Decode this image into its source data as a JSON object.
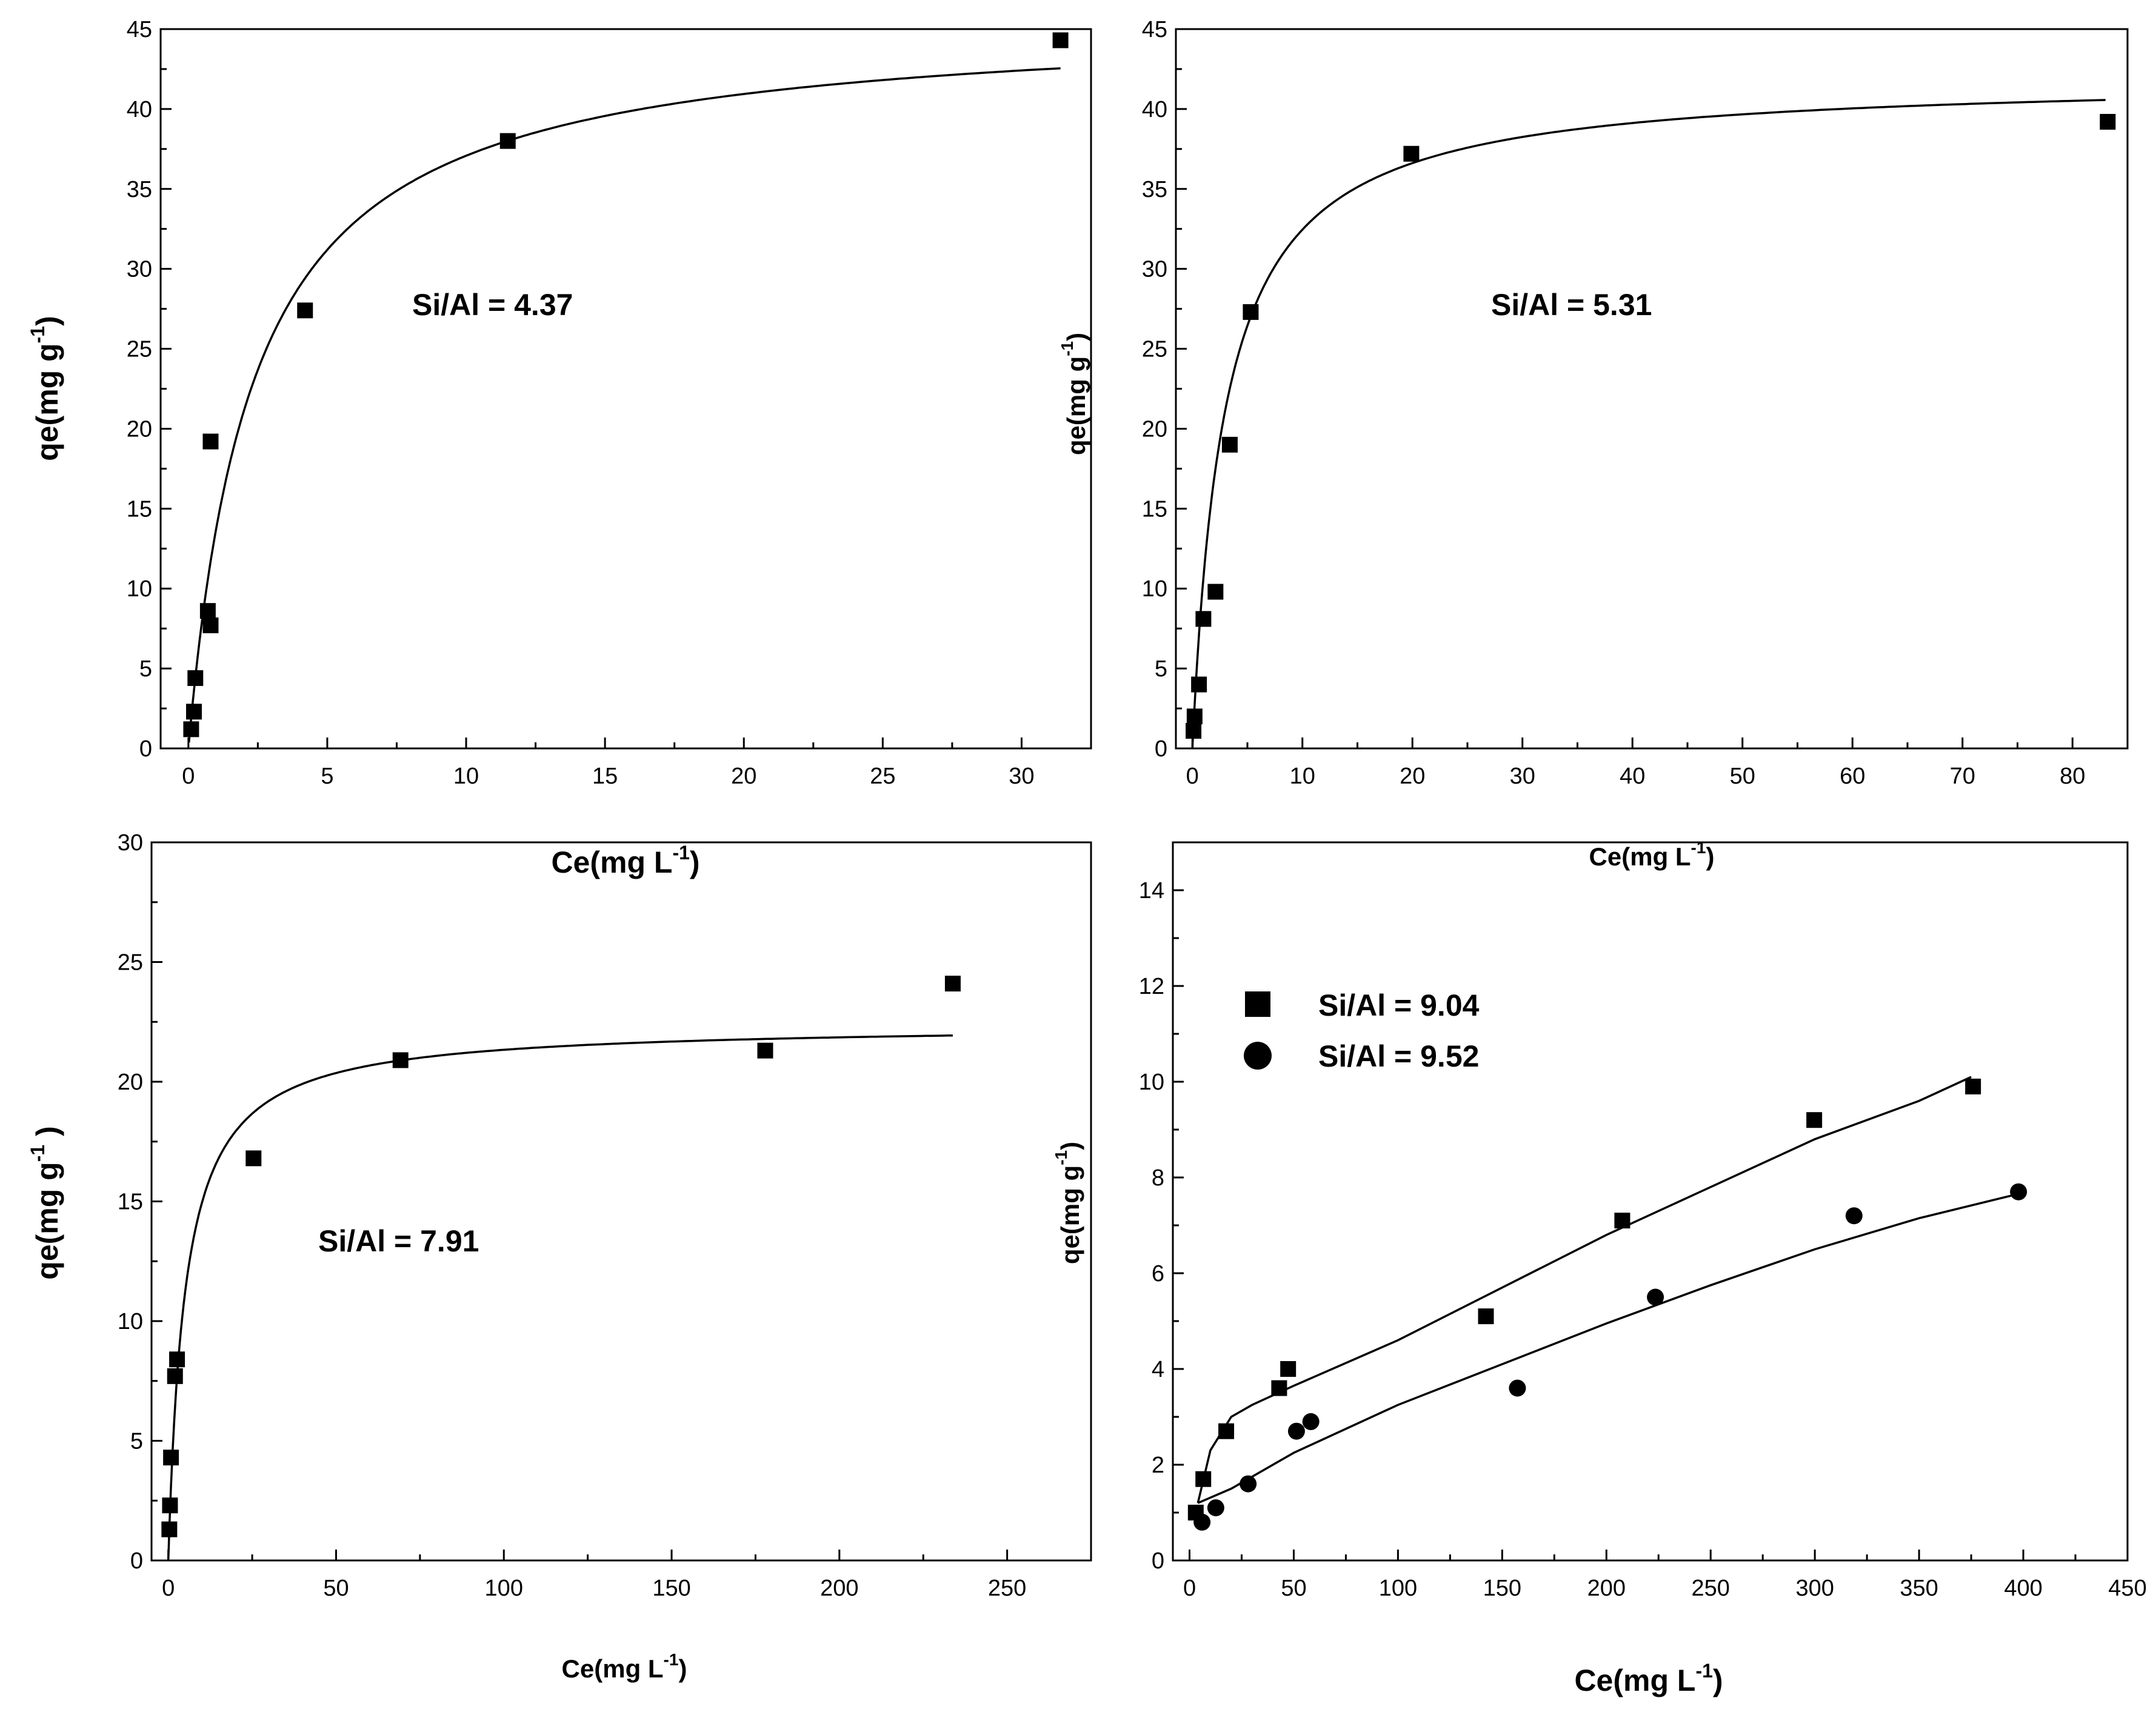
{
  "chart_data": [
    {
      "type": "scatter",
      "title": "",
      "annotation": "Si/Al = 4.37",
      "xlabel": {
        "base": "Ce(mg L",
        "sup": "-1",
        "close": ")"
      },
      "ylabel": {
        "base": "qe(mg g",
        "sup": "-1",
        "close": ")"
      },
      "xlim": [
        -1,
        32.5
      ],
      "ylim": [
        0,
        45
      ],
      "xticks": [
        0,
        5,
        10,
        15,
        20,
        25,
        30
      ],
      "yticks": [
        0,
        5,
        10,
        15,
        20,
        25,
        30,
        35,
        40,
        45
      ],
      "grid": false,
      "series": [
        {
          "name": "Si/Al = 4.37",
          "marker": "square",
          "x": [
            0.1,
            0.2,
            0.25,
            0.7,
            0.8,
            0.8,
            4.2,
            11.5,
            31.4
          ],
          "y": [
            1.2,
            2.3,
            4.4,
            8.6,
            7.7,
            19.2,
            27.4,
            38.0,
            44.3
          ],
          "fit": {
            "model": "langmuir",
            "qmax": 45.7,
            "K": 0.43,
            "xmin": 0.02,
            "xmax": 31.4
          }
        }
      ]
    },
    {
      "type": "scatter",
      "title": "",
      "annotation": "Si/Al = 5.31",
      "xlabel": {
        "base": "Ce(mg L",
        "sup": "-1",
        "close": ")"
      },
      "ylabel": {
        "base": "qe(mg g",
        "sup": "-1",
        "close": ")"
      },
      "xlim": [
        -1.5,
        85
      ],
      "ylim": [
        0,
        45
      ],
      "xticks": [
        0,
        10,
        20,
        30,
        40,
        50,
        60,
        70,
        80
      ],
      "yticks": [
        0,
        5,
        10,
        15,
        20,
        25,
        30,
        35,
        40,
        45
      ],
      "grid": false,
      "series": [
        {
          "name": "Si/Al = 5.31",
          "marker": "square",
          "x": [
            0.1,
            0.2,
            0.6,
            1.0,
            2.1,
            3.4,
            5.3,
            19.9,
            83.2
          ],
          "y": [
            1.1,
            2.0,
            4.0,
            8.1,
            9.8,
            19.0,
            27.3,
            37.2,
            39.2
          ],
          "fit": {
            "model": "langmuir",
            "qmax": 42.0,
            "K": 0.34,
            "xmin": 0.0,
            "xmax": 83.0
          }
        }
      ]
    },
    {
      "type": "scatter",
      "title": "",
      "annotation": "Si/Al = 7.91",
      "xlabel": {
        "base": "Ce(mg L",
        "sup": "-1",
        "close": ")"
      },
      "ylabel": {
        "base": "qe(mg g",
        "sup": "-1",
        "close": " )"
      },
      "xlim": [
        -5,
        275
      ],
      "ylim": [
        0,
        30
      ],
      "xticks": [
        0,
        50,
        100,
        150,
        200,
        250
      ],
      "yticks": [
        0,
        5,
        10,
        15,
        20,
        25,
        30
      ],
      "grid": false,
      "series": [
        {
          "name": "Si/Al = 7.91",
          "marker": "square",
          "x": [
            0.3,
            0.5,
            0.8,
            2.0,
            2.6,
            25.4,
            69.2,
            177.9,
            233.8
          ],
          "y": [
            1.3,
            2.3,
            4.3,
            7.7,
            8.4,
            16.8,
            20.9,
            21.3,
            24.1
          ],
          "fit": {
            "model": "langmuir",
            "qmax": 22.4,
            "K": 0.2,
            "xmin": 0.0,
            "xmax": 233.8
          }
        }
      ]
    },
    {
      "type": "scatter",
      "title": "",
      "xlabel": {
        "base": "Ce(mg L",
        "sup": "-1",
        "close": ")"
      },
      "ylabel": {
        "base": "qe(mg g",
        "sup": "-1",
        "close": ")"
      },
      "xlim": [
        -8,
        450
      ],
      "ylim": [
        0,
        15
      ],
      "xticks": [
        0,
        50,
        100,
        150,
        200,
        250,
        300,
        350,
        400,
        450
      ],
      "yticks": [
        0,
        2,
        4,
        6,
        8,
        10,
        12,
        14
      ],
      "grid": false,
      "legend_position": "top-left",
      "series": [
        {
          "name": "Si/Al = 9.04",
          "marker": "square",
          "x": [
            3.0,
            6.6,
            17.6,
            43.0,
            47.3,
            142.2,
            207.6,
            299.7,
            375.9
          ],
          "y": [
            1.0,
            1.7,
            2.7,
            3.6,
            4.0,
            5.1,
            7.1,
            9.2,
            9.9
          ],
          "fit": {
            "model": "custom",
            "x": [
              4,
              10,
              20,
              30,
              50,
              100,
              150,
              200,
              250,
              300,
              350,
              375
            ],
            "y": [
              1.2,
              2.3,
              3.0,
              3.25,
              3.65,
              4.6,
              5.7,
              6.8,
              7.8,
              8.8,
              9.6,
              10.1
            ]
          }
        },
        {
          "name": "Si/Al = 9.52",
          "marker": "circle",
          "x": [
            6.0,
            12.6,
            28.1,
            51.3,
            58.2,
            157.3,
            223.5,
            318.8,
            397.7
          ],
          "y": [
            0.8,
            1.1,
            1.6,
            2.7,
            2.9,
            3.6,
            5.5,
            7.2,
            7.7
          ],
          "fit": {
            "model": "custom",
            "x": [
              4,
              20,
              50,
              100,
              150,
              200,
              250,
              300,
              350,
              397
            ],
            "y": [
              1.2,
              1.5,
              2.25,
              3.25,
              4.1,
              4.95,
              5.75,
              6.5,
              7.15,
              7.65
            ]
          }
        }
      ]
    }
  ]
}
